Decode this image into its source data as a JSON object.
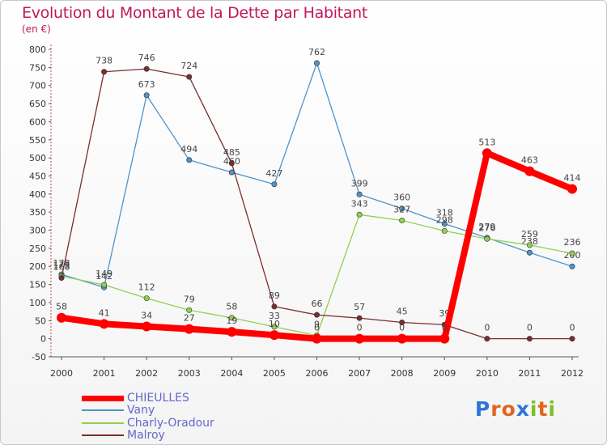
{
  "chart_data": {
    "type": "line",
    "title": "Evolution du Montant de la Dette par Habitant",
    "subtitle": "(en €)",
    "xlabel": "",
    "ylabel": "",
    "categories": [
      "2000",
      "2001",
      "2002",
      "2003",
      "2004",
      "2005",
      "2006",
      "2007",
      "2008",
      "2009",
      "2010",
      "2011",
      "2012"
    ],
    "ylim": [
      -50,
      800
    ],
    "yticks": [
      "-50",
      "0",
      "50",
      "100",
      "150",
      "200",
      "250",
      "300",
      "350",
      "400",
      "450",
      "500",
      "550",
      "600",
      "650",
      "700",
      "750",
      "800"
    ],
    "grid": false,
    "legend_position": "bottom-left",
    "series": [
      {
        "name": "CHIEULLES",
        "color": "#ff0000",
        "values": [
          58,
          41,
          34,
          27,
          19,
          10,
          0,
          0,
          0,
          0,
          513,
          463,
          414
        ],
        "labels": [
          "58",
          "41",
          "34",
          "27",
          "19",
          "10",
          "0",
          "0",
          "0",
          "0",
          "513",
          "463",
          "414"
        ]
      },
      {
        "name": "Vany",
        "color": "#4f93c9",
        "values": [
          178,
          142,
          673,
          494,
          460,
          427,
          762,
          399,
          360,
          318,
          279,
          238,
          200
        ],
        "labels": [
          "178",
          "142",
          "673",
          "494",
          "460",
          "427",
          "762",
          "399",
          "360",
          "318",
          "279",
          "238",
          "200"
        ]
      },
      {
        "name": "Charly-Oradour",
        "color": "#8fd14f",
        "values": [
          173,
          149,
          112,
          79,
          58,
          33,
          9,
          343,
          327,
          298,
          276,
          259,
          236
        ],
        "labels": [
          "173",
          "149",
          "112",
          "79",
          "58",
          "33",
          "9",
          "343",
          "327",
          "298",
          "276",
          "259",
          "236"
        ]
      },
      {
        "name": "Malroy",
        "color": "#7a2e2e",
        "values": [
          168,
          738,
          746,
          724,
          485,
          89,
          66,
          57,
          45,
          39,
          0,
          0,
          0
        ],
        "labels": [
          "168",
          "738",
          "746",
          "724",
          "485",
          "89",
          "66",
          "57",
          "45",
          "39",
          "0",
          "0",
          "0"
        ]
      }
    ]
  },
  "logo": {
    "name": "Proxiti",
    "letters": [
      "P",
      "r",
      "o",
      "x",
      "i",
      "t",
      "i"
    ],
    "letter_colors": [
      "#2e75d6",
      "#e0661e",
      "#e0661e",
      "#2e75d6",
      "#7bbf2a",
      "#e0661e",
      "#7bbf2a"
    ]
  }
}
